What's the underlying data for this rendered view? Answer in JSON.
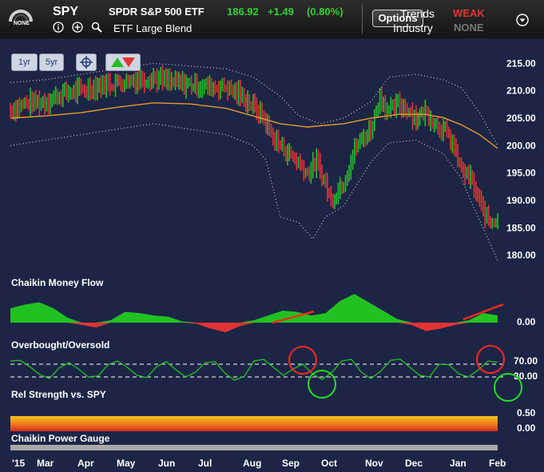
{
  "header": {
    "gauge_label": "NONE",
    "ticker": "SPY",
    "company": "SPDR S&P 500 ETF",
    "price": "186.92",
    "change": "+1.49",
    "change_pct": "(0.80%)",
    "category": "ETF Large Blend",
    "options_label": "Options",
    "trends_label": "Trends",
    "industry_label": "Industry",
    "trend_status": "WEAK",
    "industry_status": "NONE"
  },
  "toolbar": {
    "range_1yr": "1yr",
    "range_5yr": "5yr"
  },
  "panels": {
    "money_flow": "Chaikin Money Flow",
    "overbought": "Overbought/Oversold",
    "rel_strength": "Rel Strength vs. SPY",
    "power_gauge": "Chaikin Power Gauge"
  },
  "colors": {
    "up": "#22c122",
    "down": "#e23434",
    "sma": "#e89a2a",
    "band": "#c8c8c8",
    "background": "#1c2546"
  },
  "chart_data": [
    {
      "type": "bar",
      "title": "",
      "yticks": [
        "215.00",
        "210.00",
        "205.00",
        "200.00",
        "195.00",
        "190.00",
        "185.00",
        "180.00"
      ],
      "ylim": [
        178.5,
        216.5
      ],
      "xticks": [
        "'15",
        "Mar",
        "Apr",
        "May",
        "Jun",
        "Jul",
        "Aug",
        "Sep",
        "Oct",
        "Nov",
        "Dec",
        "Jan",
        "Feb"
      ],
      "series": [
        {
          "values": [
            [
              1,
              206.5
            ],
            [
              10,
              207.8
            ],
            [
              20,
              208.0
            ],
            [
              30,
              209.5
            ],
            [
              40,
              210.0
            ],
            [
              50,
              211.0
            ],
            [
              60,
              211.5
            ],
            [
              70,
              212.0
            ],
            [
              80,
              212.4
            ],
            [
              90,
              211.5
            ],
            [
              100,
              211.2
            ],
            [
              110,
              210.7
            ],
            [
              120,
              210.7
            ],
            [
              130,
              208.8
            ],
            [
              140,
              205.5
            ],
            [
              147,
              201.0
            ],
            [
              155,
              198.5
            ],
            [
              160,
              197.0
            ],
            [
              165,
              195.0
            ],
            [
              170,
              197.0
            ],
            [
              175,
              193.0
            ],
            [
              178,
              190.0
            ],
            [
              185,
              193.5
            ],
            [
              192,
              200.0
            ],
            [
              200,
              203.0
            ],
            [
              205,
              209.0
            ],
            [
              210,
              206.0
            ],
            [
              215,
              207.5
            ],
            [
              220,
              206.8
            ],
            [
              225,
              205.0
            ],
            [
              230,
              206.2
            ],
            [
              236,
              204.0
            ],
            [
              240,
              203.0
            ],
            [
              245,
              200.5
            ],
            [
              250,
              195.5
            ],
            [
              255,
              194.0
            ],
            [
              259,
              190.5
            ],
            [
              262,
              188.0
            ],
            [
              266,
              186.0
            ],
            [
              270,
              187.0
            ]
          ]
        },
        {
          "values": [
            [
              1,
              205.0
            ],
            [
              20,
              205.4
            ],
            [
              40,
              206.0
            ],
            [
              60,
              207.0
            ],
            [
              80,
              207.8
            ],
            [
              100,
              207.6
            ],
            [
              120,
              206.8
            ],
            [
              135,
              205.4
            ],
            [
              150,
              204.0
            ],
            [
              165,
              203.4
            ],
            [
              185,
              204.0
            ],
            [
              200,
              205.0
            ],
            [
              215,
              205.7
            ],
            [
              230,
              205.7
            ],
            [
              240,
              205.1
            ],
            [
              250,
              203.8
            ],
            [
              260,
              202.0
            ],
            [
              270,
              199.5
            ]
          ]
        },
        {
          "values": [
            [
              1,
              211.5
            ],
            [
              20,
              212.0
            ],
            [
              40,
              213.0
            ],
            [
              60,
              214.0
            ],
            [
              80,
              215.0
            ],
            [
              100,
              214.5
            ],
            [
              120,
              214.0
            ],
            [
              135,
              212.5
            ],
            [
              150,
              209.0
            ],
            [
              160,
              205.5
            ],
            [
              172,
              204.0
            ],
            [
              185,
              205.0
            ],
            [
              200,
              208.0
            ],
            [
              210,
              212.5
            ],
            [
              225,
              213.0
            ],
            [
              240,
              212.0
            ],
            [
              250,
              210.5
            ],
            [
              260,
              206.0
            ],
            [
              270,
              200.0
            ]
          ]
        },
        {
          "values": [
            [
              1,
              200.0
            ],
            [
              20,
              201.0
            ],
            [
              40,
              202.0
            ],
            [
              60,
              203.0
            ],
            [
              80,
              204.0
            ],
            [
              100,
              203.0
            ],
            [
              120,
              202.0
            ],
            [
              135,
              200.0
            ],
            [
              142,
              197.5
            ],
            [
              150,
              187.0
            ],
            [
              160,
              186.0
            ],
            [
              168,
              183.0
            ],
            [
              175,
              187.0
            ],
            [
              185,
              189.0
            ],
            [
              200,
              197.0
            ],
            [
              210,
              200.5
            ],
            [
              225,
              201.0
            ],
            [
              240,
              198.5
            ],
            [
              250,
              194.0
            ],
            [
              255,
              190.0
            ],
            [
              262,
              185.0
            ],
            [
              270,
              179.0
            ]
          ]
        }
      ],
      "series_roles": [
        "price",
        "moving-average",
        "upper-band",
        "lower-band"
      ]
    },
    {
      "type": "area",
      "title": "Chaikin Money Flow",
      "yticks": [
        "0.00"
      ],
      "values": [
        0.6,
        0.75,
        0.85,
        0.6,
        0.2,
        -0.1,
        -0.2,
        0.1,
        0.45,
        0.4,
        0.3,
        0.25,
        0.05,
        -0.05,
        -0.25,
        -0.4,
        -0.15,
        0.1,
        0.3,
        0.5,
        0.45,
        0.3,
        0.4,
        0.9,
        1.2,
        0.85,
        0.5,
        0.15,
        -0.1,
        -0.35,
        -0.25,
        -0.1,
        0.1,
        0.4,
        0.3
      ]
    },
    {
      "type": "line",
      "title": "Overbought/Oversold",
      "yticks": [
        "70.00",
        "30.00"
      ],
      "ylim": [
        0,
        100
      ],
      "values": [
        80,
        82,
        62,
        38,
        25,
        58,
        75,
        55,
        30,
        33,
        68,
        80,
        60,
        35,
        28,
        62,
        78,
        52,
        30,
        45,
        75,
        78,
        42,
        20,
        32,
        80,
        85,
        60,
        35,
        55,
        70,
        40,
        22,
        45,
        80,
        85,
        45,
        25,
        48,
        82,
        86,
        60,
        35,
        30,
        70,
        68,
        40,
        30,
        52,
        80,
        76
      ]
    },
    {
      "type": "table",
      "title": "Rel Strength vs. SPY",
      "yticks": [
        "0.50",
        "0.00"
      ]
    }
  ]
}
